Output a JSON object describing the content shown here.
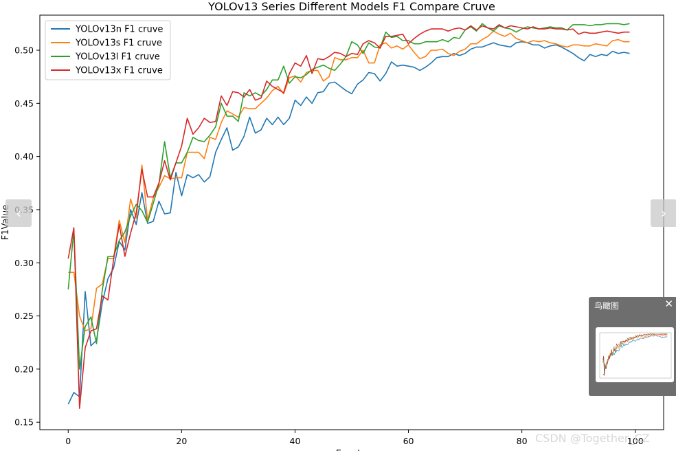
{
  "chart_data": {
    "type": "line",
    "title": "YOLOv13 Series Different Models F1 Compare Cruve",
    "xlabel": "Epochs",
    "ylabel": "F1Value",
    "xlim": [
      -5,
      105
    ],
    "ylim": [
      0.143,
      0.533
    ],
    "xticks": [
      "0",
      "20",
      "40",
      "60",
      "80",
      "100"
    ],
    "yticks": [
      "0.15",
      "0.20",
      "0.25",
      "0.30",
      "0.35",
      "0.40",
      "0.45",
      "0.50"
    ],
    "grid": false,
    "legend": "top-left",
    "series": [
      {
        "name": "YOLOv13n F1 cruve",
        "color": "#1f77b4",
        "values": [
          0.167,
          0.178,
          0.174,
          0.273,
          0.222,
          0.227,
          0.262,
          0.285,
          0.295,
          0.32,
          0.312,
          0.35,
          0.336,
          0.366,
          0.337,
          0.339,
          0.358,
          0.346,
          0.347,
          0.385,
          0.363,
          0.383,
          0.38,
          0.383,
          0.376,
          0.381,
          0.404,
          0.416,
          0.427,
          0.406,
          0.409,
          0.419,
          0.437,
          0.422,
          0.425,
          0.436,
          0.43,
          0.437,
          0.43,
          0.436,
          0.453,
          0.448,
          0.456,
          0.45,
          0.46,
          0.461,
          0.469,
          0.47,
          0.466,
          0.462,
          0.459,
          0.468,
          0.472,
          0.479,
          0.478,
          0.471,
          0.478,
          0.489,
          0.485,
          0.486,
          0.485,
          0.484,
          0.481,
          0.484,
          0.488,
          0.493,
          0.494,
          0.494,
          0.497,
          0.495,
          0.497,
          0.501,
          0.503,
          0.503,
          0.505,
          0.507,
          0.505,
          0.504,
          0.503,
          0.507,
          0.508,
          0.507,
          0.505,
          0.505,
          0.502,
          0.504,
          0.505,
          0.503,
          0.5,
          0.497,
          0.493,
          0.49,
          0.496,
          0.494,
          0.496,
          0.495,
          0.499,
          0.497,
          0.498,
          0.497
        ]
      },
      {
        "name": "YOLOv13s F1 cruve",
        "color": "#ff7f0e",
        "values": [
          0.291,
          0.291,
          0.25,
          0.236,
          0.238,
          0.276,
          0.28,
          0.304,
          0.304,
          0.34,
          0.319,
          0.36,
          0.342,
          0.392,
          0.34,
          0.361,
          0.371,
          0.382,
          0.379,
          0.38,
          0.38,
          0.404,
          0.404,
          0.404,
          0.398,
          0.418,
          0.416,
          0.432,
          0.443,
          0.44,
          0.437,
          0.446,
          0.445,
          0.445,
          0.45,
          0.455,
          0.462,
          0.466,
          0.459,
          0.474,
          0.476,
          0.47,
          0.479,
          0.481,
          0.481,
          0.471,
          0.475,
          0.493,
          0.491,
          0.491,
          0.493,
          0.493,
          0.5,
          0.488,
          0.488,
          0.505,
          0.507,
          0.502,
          0.504,
          0.501,
          0.505,
          0.498,
          0.492,
          0.494,
          0.5,
          0.5,
          0.501,
          0.497,
          0.495,
          0.499,
          0.501,
          0.506,
          0.506,
          0.51,
          0.513,
          0.518,
          0.515,
          0.513,
          0.516,
          0.511,
          0.509,
          0.507,
          0.509,
          0.508,
          0.509,
          0.507,
          0.506,
          0.504,
          0.503,
          0.505,
          0.505,
          0.504,
          0.504,
          0.506,
          0.505,
          0.504,
          0.509,
          0.51,
          0.508,
          0.508
        ]
      },
      {
        "name": "YOLOv13l F1 cruve",
        "color": "#2ca02c",
        "values": [
          0.275,
          0.331,
          0.2,
          0.24,
          0.249,
          0.224,
          0.274,
          0.306,
          0.306,
          0.321,
          0.329,
          0.344,
          0.355,
          0.349,
          0.338,
          0.356,
          0.374,
          0.414,
          0.38,
          0.394,
          0.394,
          0.404,
          0.418,
          0.415,
          0.414,
          0.42,
          0.428,
          0.45,
          0.438,
          0.438,
          0.433,
          0.46,
          0.457,
          0.46,
          0.457,
          0.463,
          0.472,
          0.472,
          0.485,
          0.469,
          0.475,
          0.474,
          0.477,
          0.482,
          0.484,
          0.486,
          0.483,
          0.481,
          0.487,
          0.494,
          0.508,
          0.505,
          0.497,
          0.507,
          0.503,
          0.502,
          0.517,
          0.512,
          0.513,
          0.509,
          0.509,
          0.506,
          0.506,
          0.508,
          0.508,
          0.508,
          0.51,
          0.508,
          0.512,
          0.511,
          0.519,
          0.522,
          0.518,
          0.525,
          0.521,
          0.518,
          0.523,
          0.521,
          0.52,
          0.517,
          0.52,
          0.522,
          0.521,
          0.52,
          0.521,
          0.522,
          0.521,
          0.521,
          0.519,
          0.524,
          0.524,
          0.524,
          0.523,
          0.524,
          0.524,
          0.525,
          0.525,
          0.525,
          0.524,
          0.525
        ]
      },
      {
        "name": "YOLOv13x F1 cruve",
        "color": "#d62728",
        "values": [
          0.304,
          0.333,
          0.163,
          0.22,
          0.236,
          0.238,
          0.269,
          0.265,
          0.303,
          0.336,
          0.306,
          0.328,
          0.347,
          0.388,
          0.362,
          0.362,
          0.375,
          0.396,
          0.378,
          0.394,
          0.41,
          0.436,
          0.421,
          0.427,
          0.436,
          0.432,
          0.433,
          0.457,
          0.448,
          0.461,
          0.46,
          0.456,
          0.463,
          0.453,
          0.455,
          0.471,
          0.466,
          0.463,
          0.46,
          0.478,
          0.488,
          0.485,
          0.495,
          0.478,
          0.492,
          0.491,
          0.494,
          0.498,
          0.497,
          0.494,
          0.497,
          0.496,
          0.506,
          0.509,
          0.507,
          0.502,
          0.513,
          0.513,
          0.514,
          0.515,
          0.506,
          0.511,
          0.515,
          0.518,
          0.52,
          0.52,
          0.52,
          0.518,
          0.52,
          0.521,
          0.519,
          0.523,
          0.519,
          0.523,
          0.521,
          0.52,
          0.524,
          0.521,
          0.523,
          0.522,
          0.521,
          0.52,
          0.522,
          0.52,
          0.52,
          0.521,
          0.52,
          0.52,
          0.519,
          0.52,
          0.515,
          0.517,
          0.516,
          0.516,
          0.517,
          0.518,
          0.517,
          0.516,
          0.517,
          0.517
        ]
      }
    ]
  },
  "nav": {
    "prev_glyph": "‹",
    "next_glyph": "›"
  },
  "birdseye": {
    "title": "鸟瞰图",
    "close_glyph": "✕"
  },
  "watermark": "CSDN @Together_CZ"
}
